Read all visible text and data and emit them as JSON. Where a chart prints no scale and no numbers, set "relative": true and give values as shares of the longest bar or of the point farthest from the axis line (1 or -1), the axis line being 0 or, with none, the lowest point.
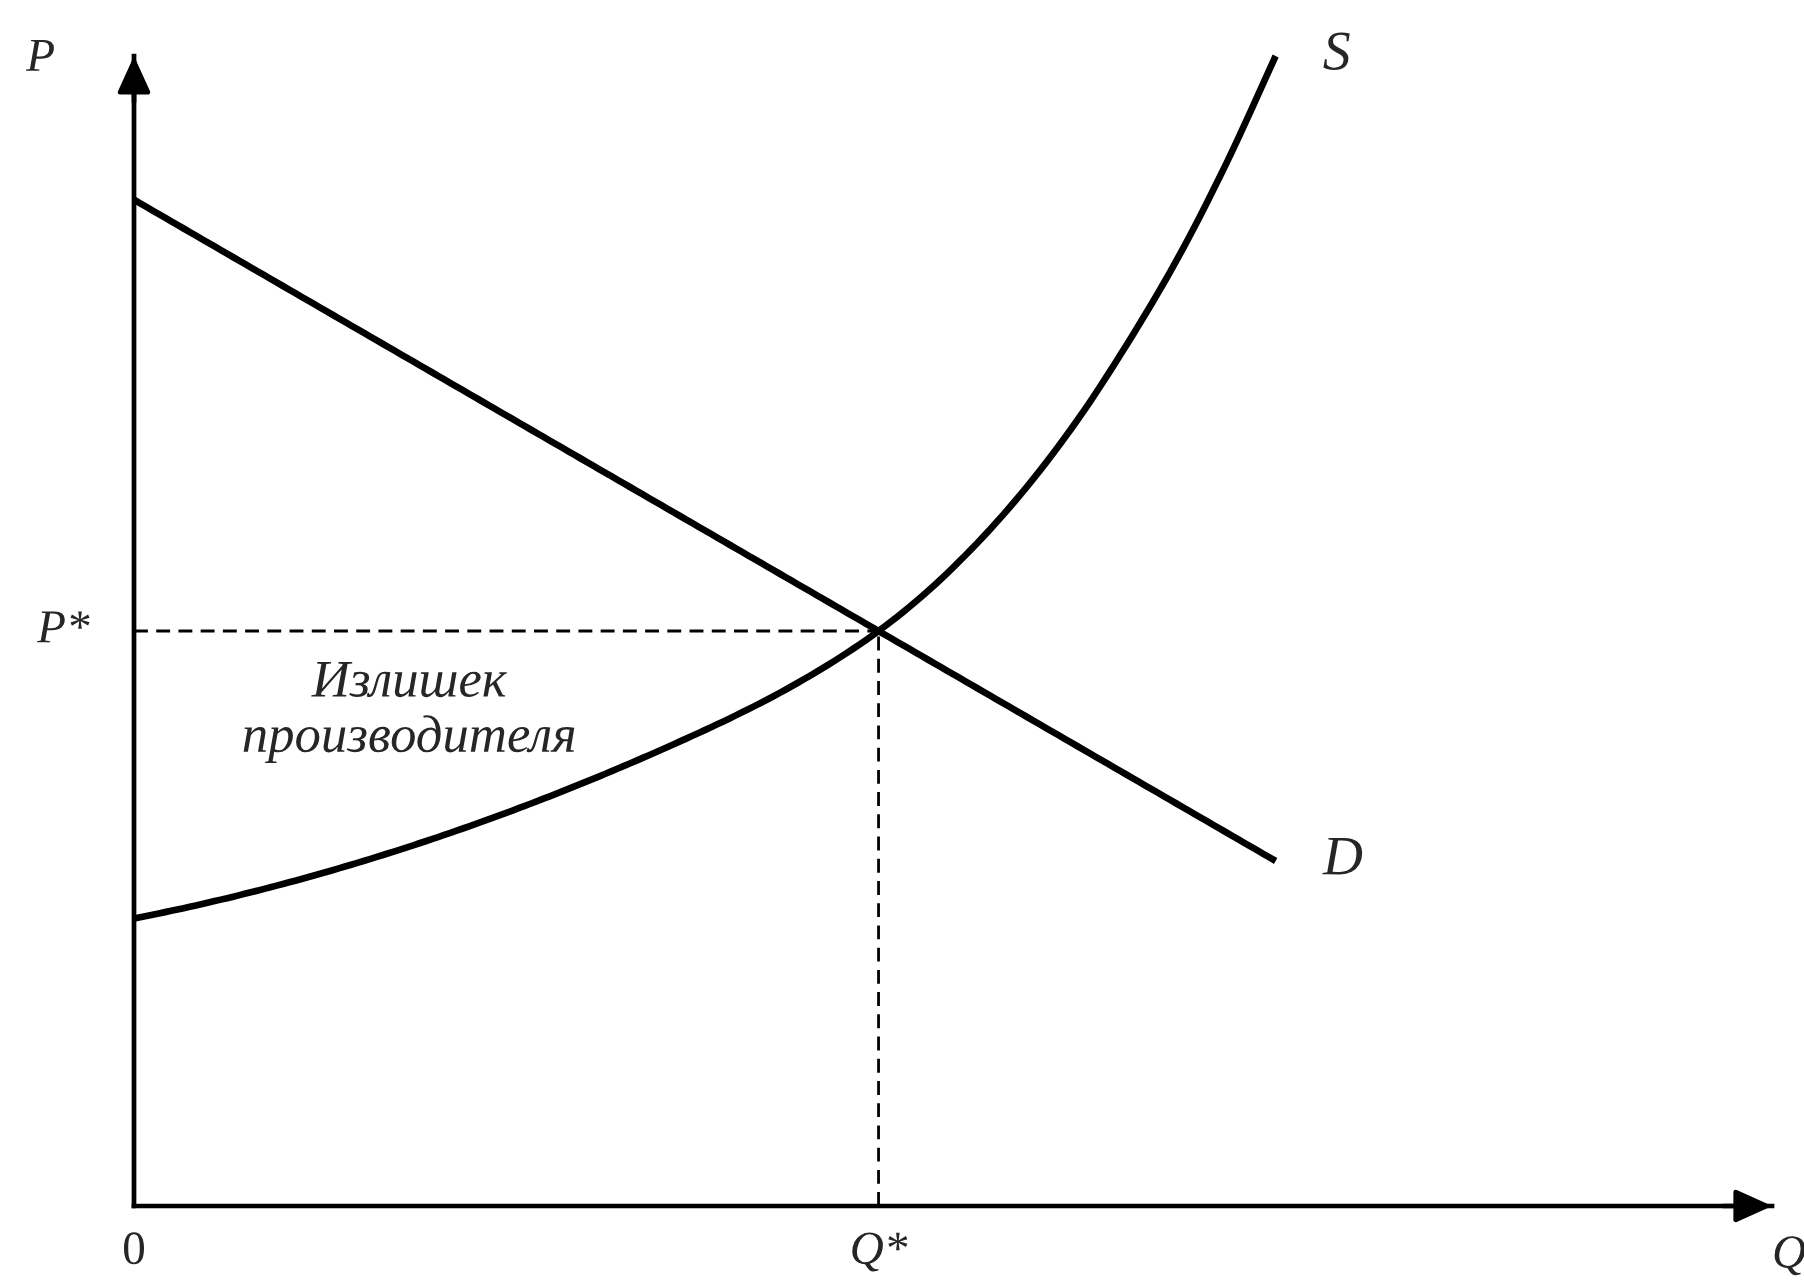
{
  "chart_data": {
    "type": "line",
    "relative": true,
    "xlabel": "Q",
    "ylabel": "P",
    "categories": [
      "0",
      null,
      null,
      null,
      null,
      null,
      null,
      null,
      null,
      null,
      null,
      null,
      null,
      null,
      null,
      "Q*",
      null,
      null,
      null,
      null,
      null,
      null,
      null,
      null,
      null,
      null,
      null,
      null,
      null,
      null,
      null,
      null,
      null,
      null
    ],
    "series": [
      {
        "name": "D",
        "color": "#000000",
        "values": [
          0.875,
          0.85,
          0.825,
          0.8,
          0.775,
          0.75,
          0.725,
          0.7,
          0.675,
          0.65,
          0.625,
          0.6,
          0.575,
          0.55,
          0.525,
          0.5,
          0.475,
          0.45,
          0.425,
          0.4,
          0.375,
          0.35,
          0.325,
          0.3,
          null,
          null,
          null,
          null,
          null,
          null,
          null,
          null,
          null,
          null
        ]
      },
      {
        "name": "S",
        "color": "#000000",
        "values": [
          0.25,
          0.259,
          0.269,
          0.28,
          0.292,
          0.305,
          0.319,
          0.334,
          0.35,
          0.367,
          0.385,
          0.404,
          0.424,
          0.446,
          0.471,
          0.5,
          0.535,
          0.577,
          0.626,
          0.683,
          0.749,
          0.822,
          0.906,
          1.0,
          null,
          null,
          null,
          null,
          null,
          null,
          null,
          null,
          null,
          null
        ]
      },
      {
        "color": "#000000",
        "line_style": "dashed",
        "x": [
          "Q*",
          "Q*"
        ],
        "values": [
          0,
          0.5
        ]
      }
    ],
    "ref_lines": [
      {
        "axis": "y",
        "value": 0.5,
        "label": "P*",
        "line_style": "dashed",
        "color": "#000000"
      }
    ],
    "annotations": [
      "Излишек\nпроизводителя"
    ]
  }
}
